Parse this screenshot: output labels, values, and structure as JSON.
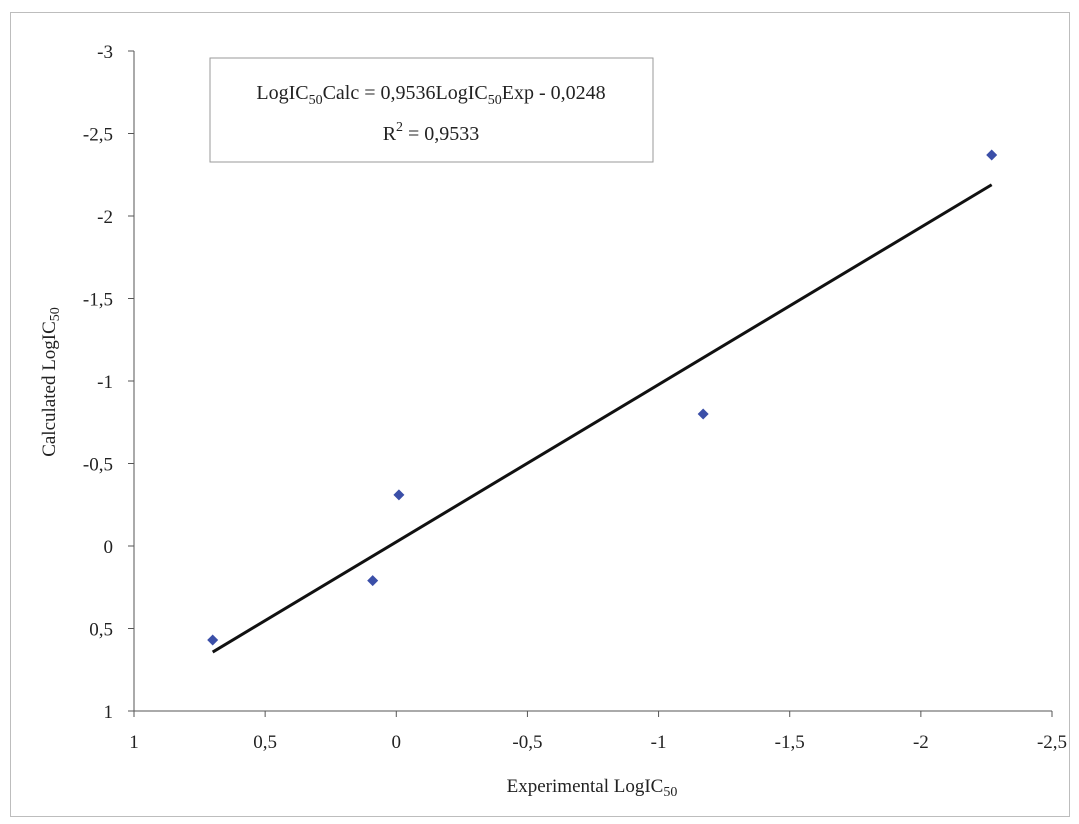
{
  "chart_data": {
    "type": "scatter",
    "title": "",
    "xlabel": "Experimental LogIC50",
    "ylabel": "Calculated LogIC50",
    "x_axis": {
      "min": -2.5,
      "max": 1,
      "reversed": true,
      "ticks": [
        1,
        0.5,
        0,
        -0.5,
        -1,
        -1.5,
        -2,
        -2.5
      ]
    },
    "y_axis": {
      "min": -3,
      "max": 1,
      "reversed": true,
      "ticks": [
        -3,
        -2.5,
        -2,
        -1.5,
        -1,
        -0.5,
        0,
        0.5,
        1
      ]
    },
    "x_tick_labels": [
      "1",
      "0,5",
      "0",
      "-0,5",
      "-1",
      "-1,5",
      "-2",
      "-2,5"
    ],
    "y_tick_labels": [
      "-3",
      "-2,5",
      "-2",
      "-1,5",
      "-1",
      "-0,5",
      "0",
      "0,5",
      "1"
    ],
    "points": [
      {
        "x": 0.7,
        "y": 0.57
      },
      {
        "x": 0.09,
        "y": 0.21
      },
      {
        "x": -0.01,
        "y": -0.31
      },
      {
        "x": -1.17,
        "y": -0.8
      },
      {
        "x": -2.27,
        "y": -2.37
      }
    ],
    "trendline": {
      "slope": 0.9536,
      "intercept": -0.0248,
      "x_from": 0.7,
      "x_to": -2.27
    },
    "equation": {
      "line1": {
        "a": "LogIC",
        "b": "50",
        "c": "Calc = 0,9536LogIC",
        "d": "50",
        "e": "Exp - 0,0248"
      },
      "line2": {
        "a": "R",
        "b": "2",
        "c": " = 0,9533"
      }
    },
    "grid": false,
    "legend": "none",
    "colors": {
      "marker": "#3b4fa8",
      "trendline": "#111111",
      "axis": "#555555"
    }
  }
}
